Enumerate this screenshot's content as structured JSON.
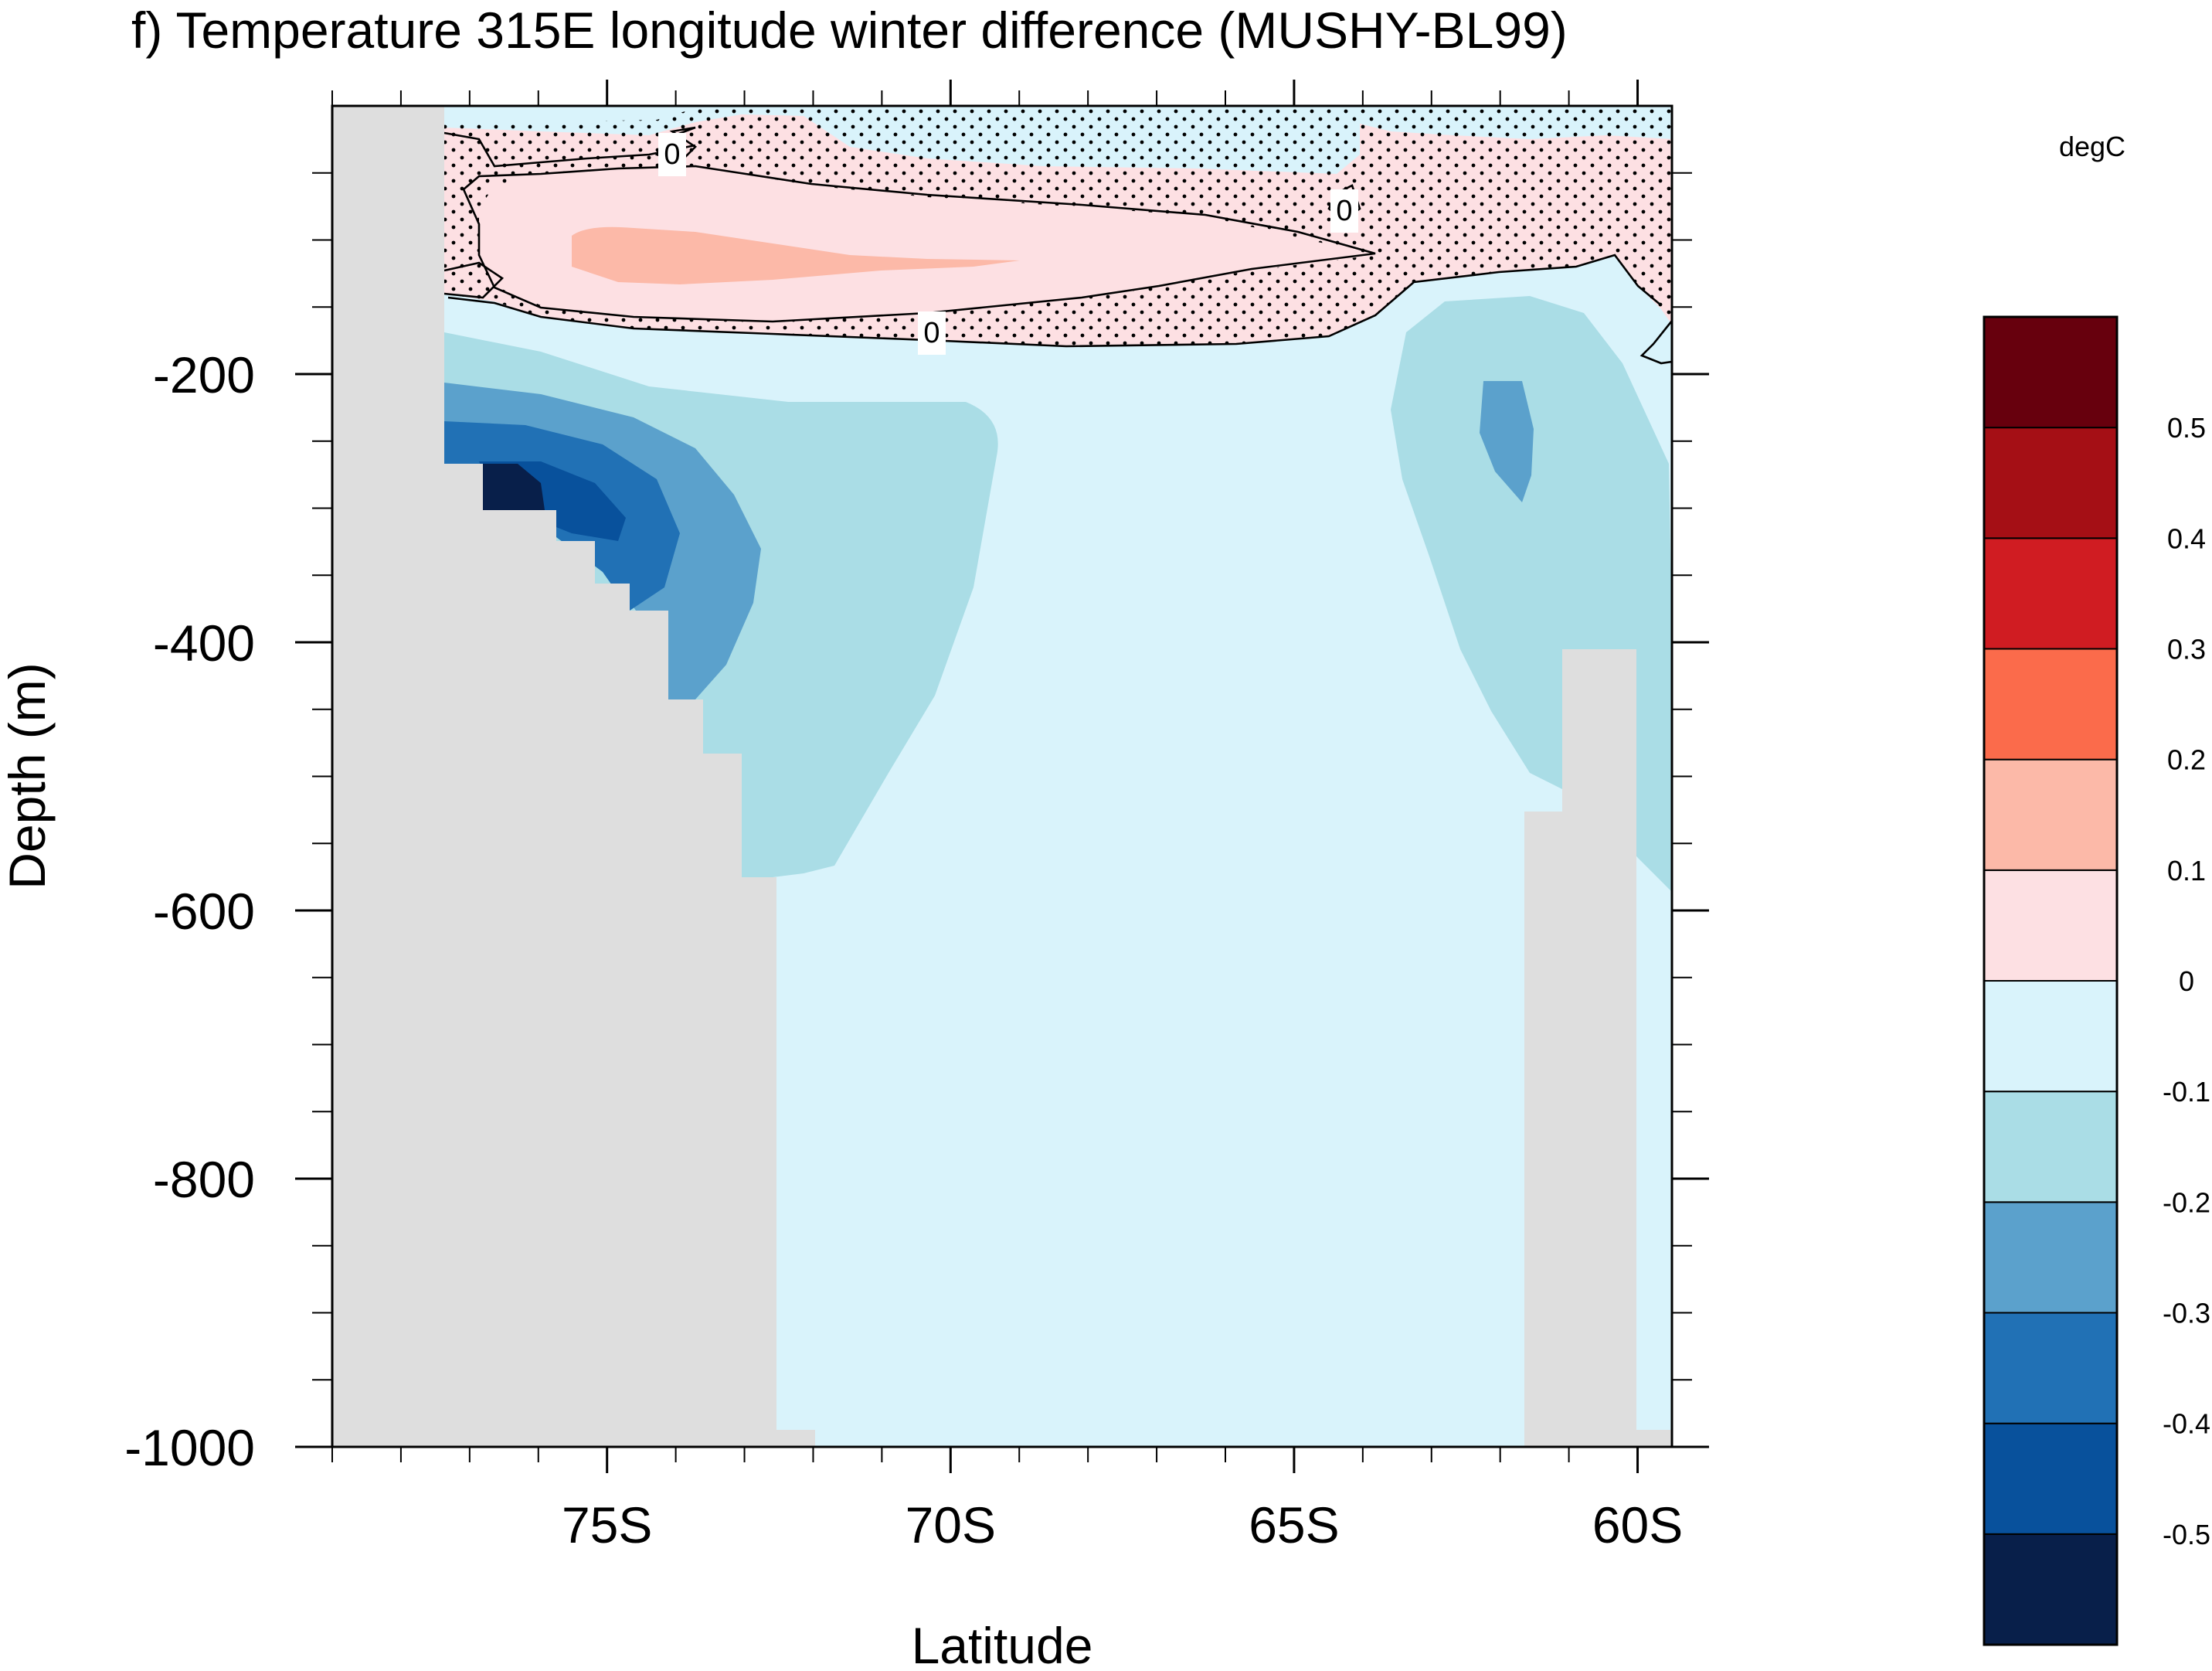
{
  "chart_data": {
    "type": "heatmap",
    "title": "f) Temperature 315E longitude winter difference (MUSHY-BL99)",
    "xlabel": "Latitude",
    "ylabel": "Depth (m)",
    "units": "degC",
    "x": {
      "range": [
        -79,
        -59.5
      ],
      "ticks": [
        {
          "value": -75,
          "label": "75S"
        },
        {
          "value": -70,
          "label": "70S"
        },
        {
          "value": -65,
          "label": "65S"
        },
        {
          "value": -60,
          "label": "60S"
        }
      ]
    },
    "y": {
      "range": [
        -1000,
        0
      ],
      "ticks": [
        {
          "value": -200,
          "label": "-200"
        },
        {
          "value": -400,
          "label": "-400"
        },
        {
          "value": -600,
          "label": "-600"
        },
        {
          "value": -800,
          "label": "-800"
        },
        {
          "value": -1000,
          "label": "-1000"
        }
      ]
    },
    "colorbar": {
      "colors": [
        "#081f4a",
        "#08519c",
        "#2171b5",
        "#5ba1cc",
        "#aadde6",
        "#d9f3fb",
        "#fde0e3",
        "#fcb9a8",
        "#fb6b4b",
        "#d01c22",
        "#a50f15",
        "#67000d"
      ],
      "labels": [
        "-0.5",
        "-0.4",
        "-0.3",
        "-0.2",
        "-0.1",
        "0",
        "0.1",
        "0.2",
        "0.3",
        "0.4",
        "0.5"
      ]
    },
    "contour_zero_label": "0",
    "stipple": "significant regions",
    "land_color": "#dedede"
  }
}
